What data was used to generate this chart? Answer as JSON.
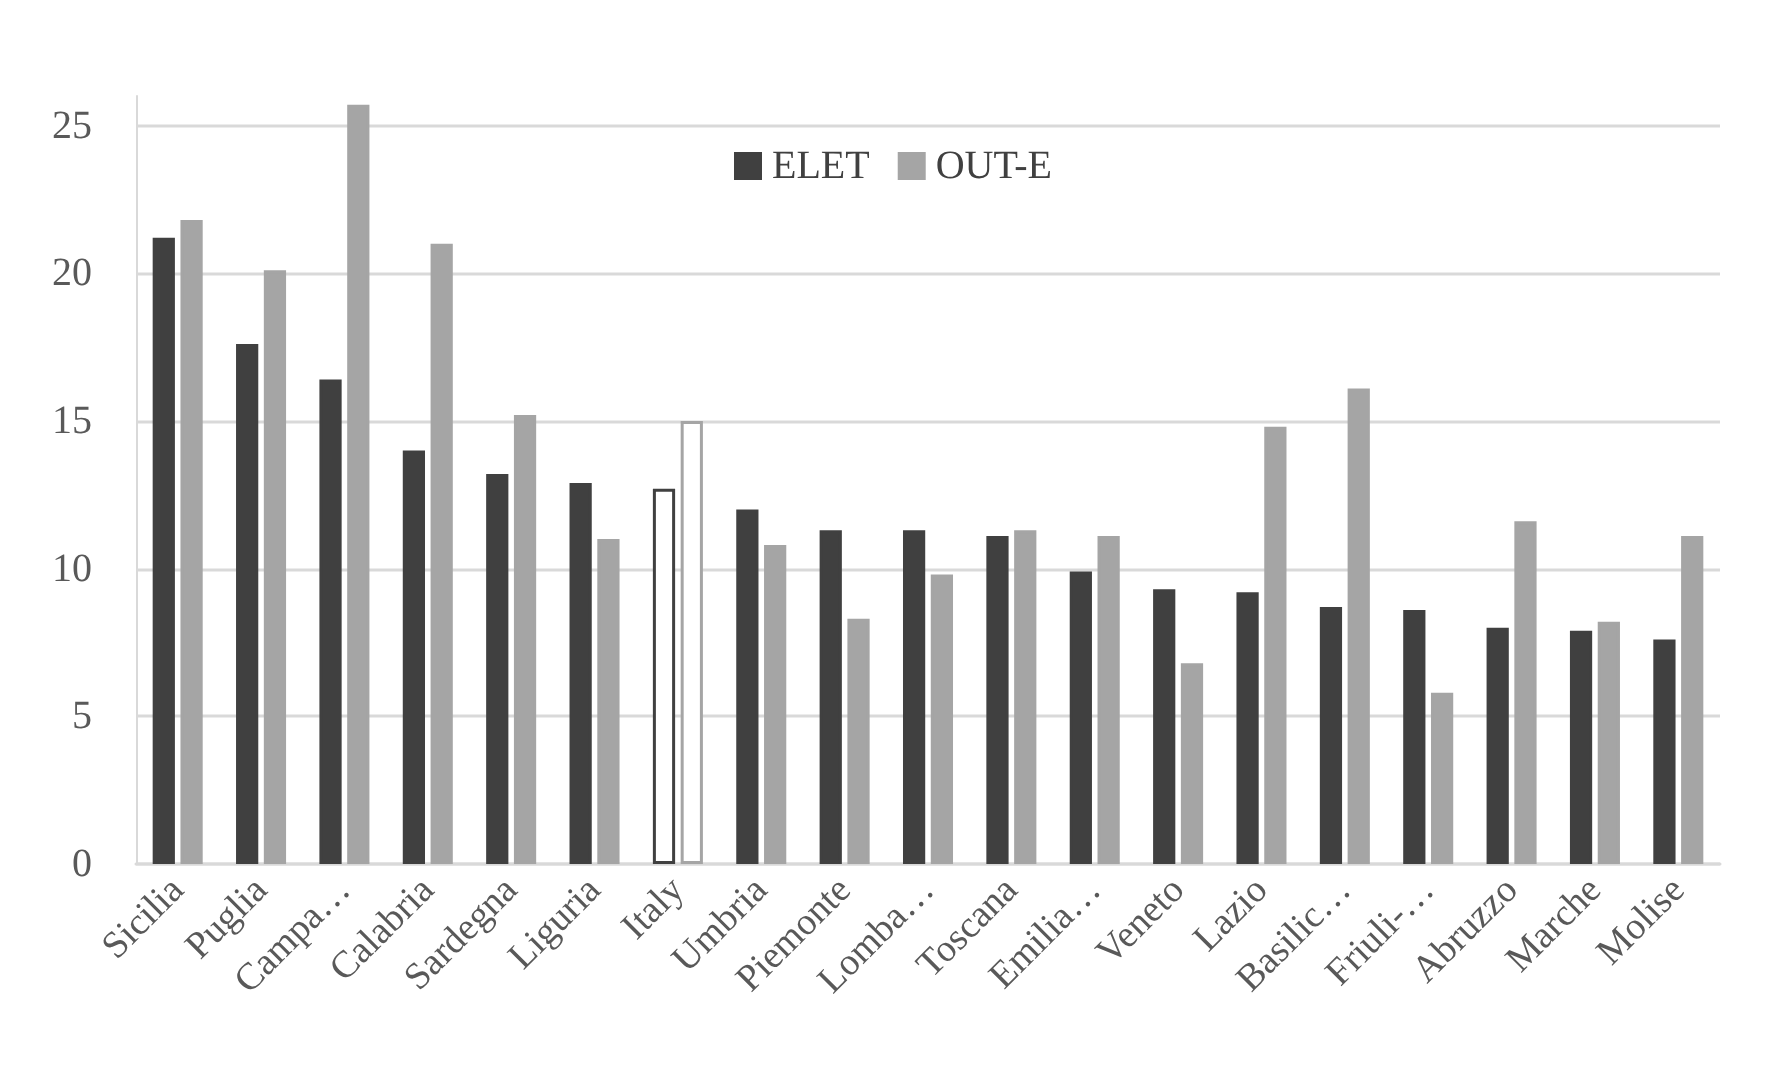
{
  "chart_data": {
    "type": "bar",
    "categories": [
      "Sicilia",
      "Puglia",
      "Campa…",
      "Calabria",
      "Sardegna",
      "Liguria",
      "Italy",
      "Umbria",
      "Piemonte",
      "Lomba…",
      "Toscana",
      "Emilia…",
      "Veneto",
      "Lazio",
      "Basilic…",
      "Friuli-…",
      "Abruzzo",
      "Marche",
      "Molise"
    ],
    "series": [
      {
        "name": "ELET",
        "color": "#404040",
        "colors": [
          "#404040",
          "#404040",
          "#404040",
          "#404040",
          "#404040",
          "#404040",
          "#ffffff",
          "#404040",
          "#404040",
          "#404040",
          "#404040",
          "#404040",
          "#404040",
          "#404040",
          "#404040",
          "#404040",
          "#404040",
          "#404040",
          "#404040"
        ],
        "values": [
          21.2,
          17.6,
          16.4,
          14.0,
          13.2,
          12.9,
          12.7,
          12.0,
          11.3,
          11.3,
          11.1,
          9.9,
          9.3,
          9.2,
          8.7,
          8.6,
          8.0,
          7.9,
          7.6
        ]
      },
      {
        "name": "OUT-E",
        "color": "#a5a5a5",
        "colors": [
          "#a5a5a5",
          "#a5a5a5",
          "#a5a5a5",
          "#a5a5a5",
          "#a5a5a5",
          "#a5a5a5",
          "#ffffff",
          "#a5a5a5",
          "#a5a5a5",
          "#a5a5a5",
          "#a5a5a5",
          "#a5a5a5",
          "#a5a5a5",
          "#a5a5a5",
          "#a5a5a5",
          "#a5a5a5",
          "#a5a5a5",
          "#a5a5a5",
          "#a5a5a5"
        ],
        "values": [
          21.8,
          20.1,
          25.7,
          21.0,
          15.2,
          11.0,
          15.0,
          10.8,
          8.3,
          9.8,
          11.3,
          11.1,
          6.8,
          14.8,
          16.1,
          5.8,
          11.6,
          8.2,
          11.1
        ]
      }
    ],
    "ylim": [
      0,
      26
    ],
    "yticks": [
      0,
      5,
      10,
      15,
      20,
      25
    ],
    "grid": "y",
    "legend": "top"
  }
}
